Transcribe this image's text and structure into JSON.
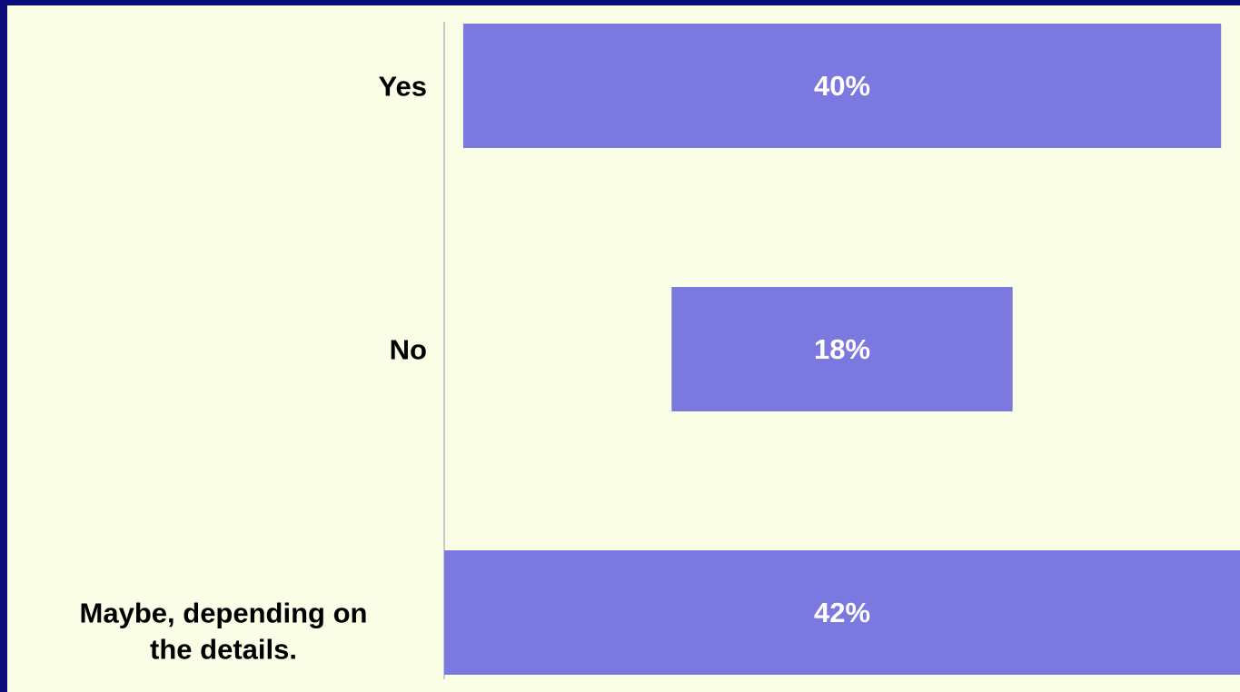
{
  "colors": {
    "background": "#fafee6",
    "border": "#0b0b7a",
    "bar": "#7b78df",
    "value_text": "#ffffff",
    "label_text": "#000000"
  },
  "chart_data": {
    "type": "bar",
    "orientation": "horizontal",
    "layout": "centered",
    "categories": [
      [
        "Yes"
      ],
      [
        "No"
      ],
      [
        "Maybe, depending on",
        "the details."
      ]
    ],
    "values": [
      40,
      18,
      42
    ],
    "value_labels": [
      "40%",
      "18%",
      "42%"
    ],
    "unit": "%",
    "title": "",
    "xlabel": "",
    "ylabel": "",
    "xlim": [
      0,
      42
    ],
    "grid": false,
    "legend": "none"
  }
}
